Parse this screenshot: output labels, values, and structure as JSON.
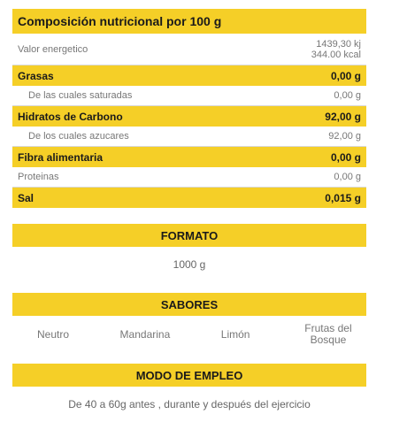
{
  "nutrition": {
    "title": "Composición nutricional por 100 g",
    "rows": [
      {
        "label": "Valor energetico",
        "value_kj": "1439,30 kj",
        "value_kcal": "344.00 kcal"
      },
      {
        "label": "Grasas",
        "value": "0,00 g"
      },
      {
        "label": "De las cuales saturadas",
        "value": "0,00 g"
      },
      {
        "label": "Hidratos de Carbono",
        "value": "92,00 g"
      },
      {
        "label": "De los cuales azucares",
        "value": "92,00 g"
      },
      {
        "label": "Fibra alimentaria",
        "value": "0,00 g"
      },
      {
        "label": "Proteinas",
        "value": "0,00 g"
      },
      {
        "label": "Sal",
        "value": "0,015 g"
      }
    ]
  },
  "formato": {
    "title": "FORMATO",
    "value": "1000 g"
  },
  "sabores": {
    "title": "SABORES",
    "items": [
      "Neutro",
      "Mandarina",
      "Limón",
      "Frutas del Bosque"
    ]
  },
  "modo_empleo": {
    "title": "MODO DE EMPLEO",
    "text": "De 40 a 60g antes , durante y después del ejercicio"
  },
  "colors": {
    "accent": "#f5cf27"
  }
}
